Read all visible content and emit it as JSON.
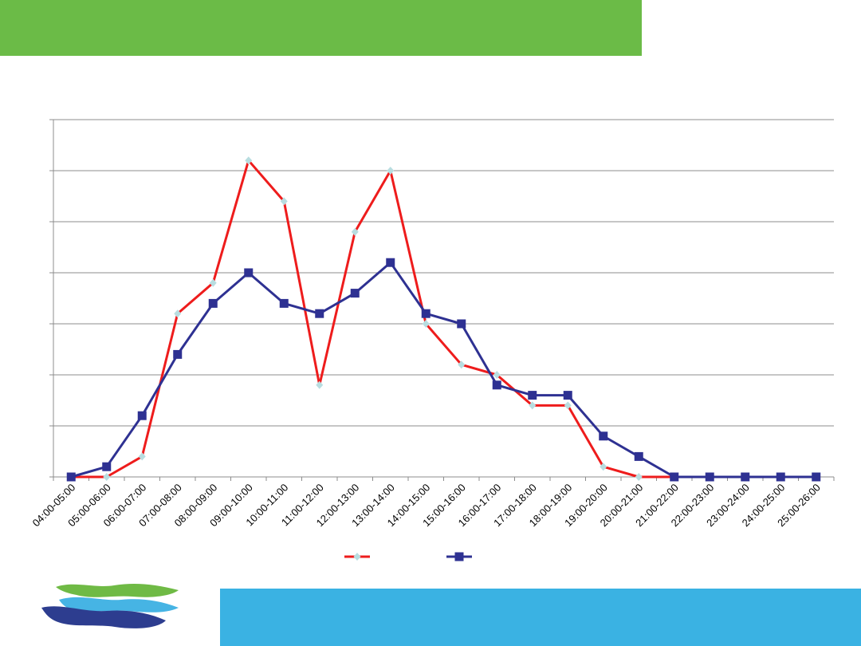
{
  "colors": {
    "top_bar": "#6bbb47",
    "bottom_bar": "#3ab2e3",
    "series_red": "#ee1c1c",
    "series_blue": "#2e3192",
    "red_marker": "#b8dde0",
    "grid": "#8c8c8c",
    "logo_green": "#6fba45",
    "logo_light_blue": "#46b4e4",
    "logo_navy": "#2d3d8f"
  },
  "chart_data": {
    "type": "line",
    "title": "",
    "xlabel": "",
    "ylabel": "",
    "ylim": [
      0,
      7
    ],
    "grid": true,
    "legend_position": "bottom-center",
    "categories": [
      "04:00-05:00",
      "05:00-06:00",
      "06:00-07:00",
      "07:00-08:00",
      "08:00-09:00",
      "09:00-10:00",
      "10:00-11:00",
      "11:00-12:00",
      "12:00-13:00",
      "13:00-14:00",
      "14:00-15:00",
      "15:00-16:00",
      "16:00-17:00",
      "17:00-18:00",
      "18:00-19:00",
      "19:00-20:00",
      "20:00-21:00",
      "21:00-22:00",
      "22:00-23:00",
      "23:00-24:00",
      "24:00-25:00",
      "25:00-26:00"
    ],
    "series": [
      {
        "color": "#ee1c1c",
        "marker": "diamond",
        "values": [
          0,
          0,
          0.4,
          3.2,
          3.8,
          6.2,
          5.4,
          1.8,
          4.8,
          6.0,
          3.0,
          2.2,
          2.0,
          1.4,
          1.4,
          0.2,
          0,
          0,
          0,
          0,
          0,
          0
        ]
      },
      {
        "color": "#2e3192",
        "marker": "square",
        "values": [
          0,
          0.2,
          1.2,
          2.4,
          3.4,
          4.0,
          3.4,
          3.2,
          3.6,
          4.2,
          3.2,
          3.0,
          1.8,
          1.6,
          1.6,
          0.8,
          0.4,
          0,
          0,
          0,
          0,
          0
        ]
      }
    ]
  }
}
